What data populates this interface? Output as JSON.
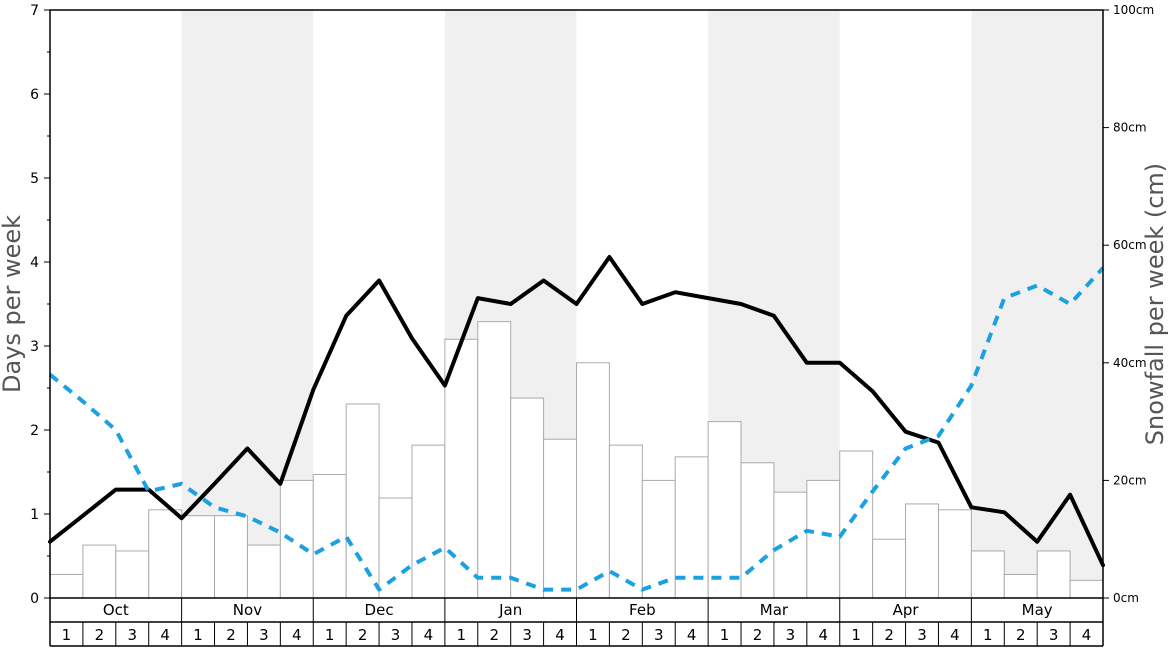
{
  "chart_data": {
    "type": "bar",
    "title": "",
    "months": [
      "Oct",
      "Nov",
      "Dec",
      "Jan",
      "Feb",
      "Mar",
      "Apr",
      "May"
    ],
    "weeks": [
      "1",
      "2",
      "3",
      "4"
    ],
    "left_axis": {
      "label": "Days per week",
      "ylim": [
        0,
        7
      ],
      "ticks": [
        "0",
        "1",
        "2",
        "3",
        "4",
        "5",
        "6",
        "7"
      ]
    },
    "right_axis": {
      "label": "Snowfall per week (cm)",
      "ylim": [
        0,
        100
      ],
      "ticks": [
        "0cm",
        "20cm",
        "40cm",
        "60cm",
        "80cm",
        "100cm"
      ]
    },
    "alternate_month_shading": true,
    "colors": {
      "bars_fill": "#ffffff",
      "bars_stroke": "#aaaaaa",
      "solid_line": "#000000",
      "dashed_line": "#1ba1e2",
      "shade": "#f0f0f0"
    },
    "series": [
      {
        "type": "bar",
        "axis": "right",
        "values": [
          4,
          9,
          8,
          15,
          14,
          14,
          9,
          20,
          21,
          33,
          17,
          26,
          44,
          47,
          34,
          27,
          40,
          26,
          20,
          24,
          30,
          23,
          18,
          20,
          25,
          10,
          16,
          15,
          8,
          4,
          8,
          3
        ]
      },
      {
        "type": "line",
        "style": "solid",
        "axis": "left",
        "values": [
          0.67,
          0.98,
          1.29,
          1.29,
          0.95,
          1.36,
          1.78,
          1.36,
          2.48,
          3.36,
          3.78,
          3.09,
          2.53,
          3.57,
          3.5,
          3.78,
          3.5,
          4.06,
          3.5,
          3.64,
          3.57,
          3.5,
          3.36,
          2.8,
          2.8,
          2.46,
          1.98,
          1.85,
          1.08,
          1.02,
          0.67,
          1.23,
          0.39
        ]
      },
      {
        "type": "line",
        "style": "dashed",
        "axis": "left",
        "values": [
          2.66,
          2.34,
          2.0,
          1.27,
          1.36,
          1.08,
          0.97,
          0.78,
          0.52,
          0.73,
          0.1,
          0.39,
          0.6,
          0.24,
          0.24,
          0.1,
          0.1,
          0.32,
          0.1,
          0.24,
          0.24,
          0.24,
          0.57,
          0.8,
          0.73,
          1.27,
          1.78,
          1.93,
          2.53,
          3.57,
          3.72,
          3.5,
          3.93
        ]
      }
    ]
  }
}
